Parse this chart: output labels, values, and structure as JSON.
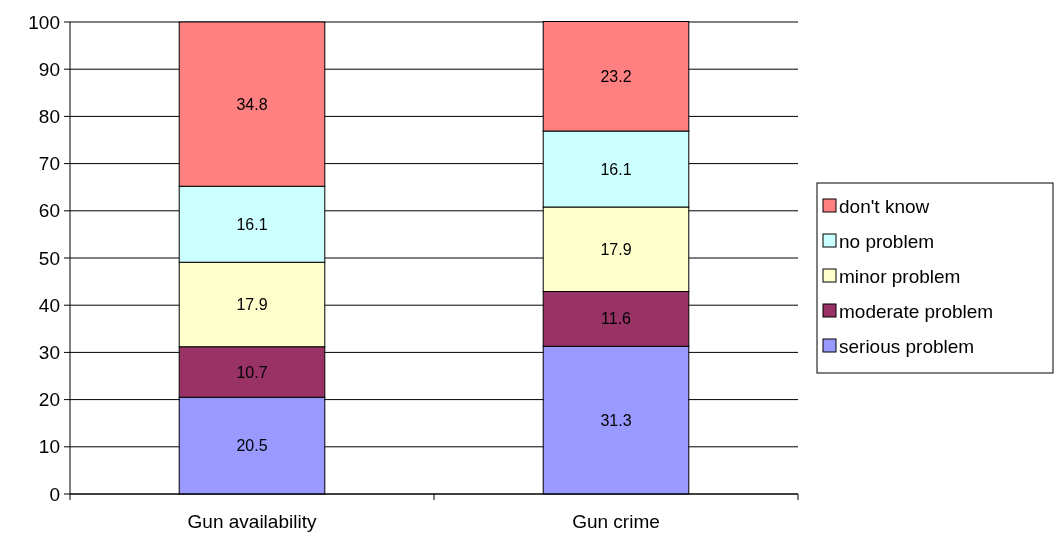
{
  "chart_data": {
    "type": "bar",
    "stacked": true,
    "categories": [
      "Gun availability",
      "Gun crime"
    ],
    "series": [
      {
        "name": "serious problem",
        "color": "#9999ff",
        "values": [
          20.5,
          31.3
        ]
      },
      {
        "name": "moderate problem",
        "color": "#993366",
        "values": [
          10.7,
          11.6
        ]
      },
      {
        "name": "minor problem",
        "color": "#ffffcc",
        "values": [
          17.9,
          17.9
        ]
      },
      {
        "name": "no problem",
        "color": "#ccffff",
        "values": [
          16.1,
          16.1
        ]
      },
      {
        "name": "don't know",
        "color": "#ff8080",
        "values": [
          34.8,
          23.2
        ]
      }
    ],
    "ylim": [
      0,
      100
    ],
    "yticks": [
      0,
      10,
      20,
      30,
      40,
      50,
      60,
      70,
      80,
      90,
      100
    ],
    "grid": "y",
    "legend": "right",
    "data_labels": true
  }
}
